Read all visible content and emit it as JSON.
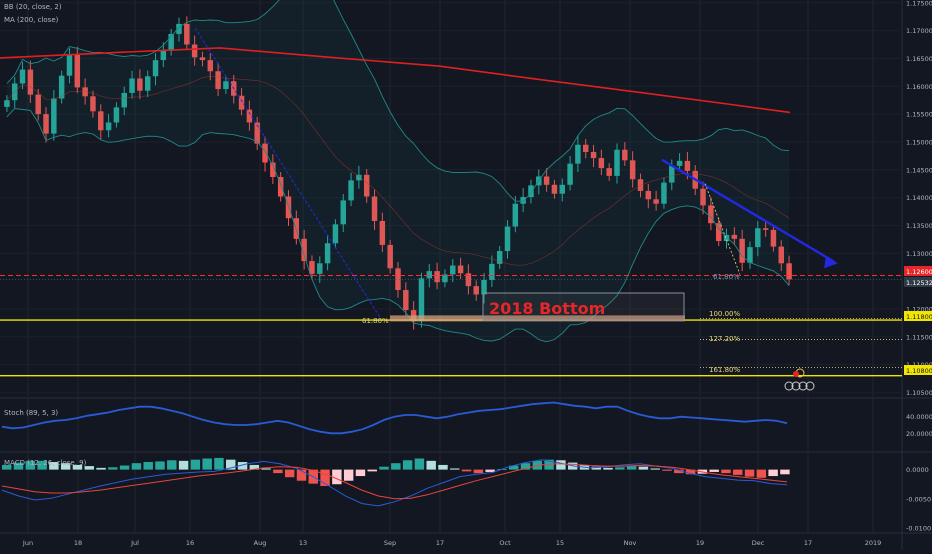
{
  "indicators": {
    "bb_label": "BB (20, close, 2)",
    "ma_label": "MA (200, close)",
    "stoch_label": "Stoch (89, 5, 3)",
    "macd_label": "MACD (12, 26, close, 9)"
  },
  "annotations": {
    "bottom_label": "2018 Bottom",
    "fib_100": "100.00%",
    "fib_127": "127.20%",
    "fib_161": "161.80%",
    "fib_618_left": "61.80%",
    "fib_618_right": "61.80%"
  },
  "price_tags": {
    "resistance": "1.12600",
    "current": "1.12532",
    "support1": "1.11800",
    "support2": "1.10800"
  },
  "colors": {
    "background": "#131722",
    "bull": "#26a69a",
    "bear": "#ef5350",
    "ma200": "#e0201f",
    "bb_band": "#1f8a88",
    "bb_mid": "#c0392b",
    "support_line": "#f2e600",
    "resistance_line": "#ff2b2b",
    "trend_arrow": "#2329e0",
    "stoch_line": "#2a5bd6",
    "macd_line": "#2a5bd6",
    "signal_line": "#e8453c"
  },
  "chart_data": [
    {
      "type": "candlestick",
      "panel": "price",
      "x_ticks": [
        "Jun",
        "18",
        "Jul",
        "16",
        "Aug",
        "13",
        "Sep",
        "17",
        "Oct",
        "15",
        "Nov",
        "19",
        "Dec",
        "17",
        "2019"
      ],
      "y_ticks": [
        "1.17500",
        "1.17000",
        "1.16500",
        "1.16000",
        "1.15500",
        "1.15000",
        "1.14500",
        "1.14000",
        "1.13500",
        "1.13000",
        "1.12000",
        "1.11500",
        "1.11000",
        "1.10500"
      ],
      "ylim": [
        1.104,
        1.1755
      ],
      "close_series": [
        1.1575,
        1.1605,
        1.163,
        1.1585,
        1.155,
        1.1515,
        1.1578,
        1.1619,
        1.1657,
        1.1598,
        1.1582,
        1.1555,
        1.1521,
        1.1535,
        1.1562,
        1.1588,
        1.1614,
        1.1592,
        1.1618,
        1.1647,
        1.1664,
        1.1694,
        1.1712,
        1.1675,
        1.1652,
        1.1647,
        1.1627,
        1.1595,
        1.1609,
        1.1583,
        1.1558,
        1.1535,
        1.1497,
        1.1463,
        1.1437,
        1.1402,
        1.1363,
        1.1326,
        1.1286,
        1.1263,
        1.1282,
        1.1318,
        1.1352,
        1.1395,
        1.1431,
        1.1441,
        1.1402,
        1.1358,
        1.1315,
        1.1273,
        1.1234,
        1.1198,
        1.1178,
        1.1255,
        1.1268,
        1.1248,
        1.1262,
        1.1278,
        1.1264,
        1.1241,
        1.1226,
        1.1252,
        1.1281,
        1.1304,
        1.1348,
        1.1389,
        1.1401,
        1.1422,
        1.1438,
        1.1423,
        1.1407,
        1.1423,
        1.1461,
        1.1495,
        1.1482,
        1.1471,
        1.1453,
        1.1439,
        1.1486,
        1.1467,
        1.1433,
        1.1412,
        1.1397,
        1.1389,
        1.1427,
        1.1457,
        1.1466,
        1.1448,
        1.1416,
        1.1386,
        1.1354,
        1.1322,
        1.1333,
        1.1326,
        1.1283,
        1.1311,
        1.1345,
        1.1342,
        1.1312,
        1.1282,
        1.1253
      ],
      "indicators": [
        "BB (20, close, 2)",
        "MA (200, close)"
      ],
      "horizontal_levels": [
        1.126,
        1.118,
        1.108
      ],
      "fib_levels": {
        "61.80%": 1.118,
        "100.00%": 1.1183,
        "127.20%": 1.1145,
        "161.80%": 1.1095
      }
    },
    {
      "type": "line",
      "panel": "stochastic",
      "name": "Stoch (89, 5, 3)",
      "y_ticks": [
        "40.0000",
        "20.0000"
      ],
      "values": [
        28,
        26,
        27,
        30,
        33,
        35,
        36,
        38,
        41,
        43,
        45,
        48,
        50,
        52,
        52,
        50,
        47,
        44,
        40,
        36,
        33,
        31,
        30,
        30,
        31,
        33,
        35,
        33,
        29,
        25,
        22,
        20,
        20,
        22,
        25,
        30,
        36,
        40,
        42,
        42,
        40,
        38,
        40,
        43,
        45,
        47,
        48,
        49,
        51,
        53,
        55,
        56,
        57,
        55,
        53,
        52,
        50,
        52,
        52,
        47,
        43,
        40,
        38,
        38,
        40,
        39,
        38,
        37,
        36,
        35,
        34,
        35,
        36,
        35,
        32
      ]
    },
    {
      "type": "bar",
      "panel": "macd",
      "name": "MACD (12, 26, close, 9)",
      "y_ticks": [
        "0.0000",
        "-0.0050",
        "-0.0100"
      ],
      "histogram": [
        0.0008,
        0.0012,
        0.0015,
        0.0015,
        0.0013,
        0.0011,
        0.0008,
        0.0006,
        0.0003,
        0.0004,
        0.0007,
        0.0011,
        0.0013,
        0.0014,
        0.0016,
        0.0015,
        0.0017,
        0.0019,
        0.002,
        0.0017,
        0.0013,
        0.0008,
        0.0002,
        -0.0006,
        -0.0013,
        -0.0019,
        -0.0024,
        -0.0028,
        -0.0025,
        -0.0019,
        -0.0011,
        -0.0003,
        0.0005,
        0.0011,
        0.0016,
        0.0019,
        0.0015,
        0.0008,
        0.0002,
        -0.0003,
        -0.0006,
        -0.0004,
        0.0001,
        0.0007,
        0.0011,
        0.0015,
        0.0017,
        0.0016,
        0.0012,
        0.0008,
        0.0005,
        0.0003,
        0.0004,
        0.0006,
        0.0005,
        0.0002,
        -0.0002,
        -0.0006,
        -0.0008,
        -0.0007,
        -0.0004,
        -0.0006,
        -0.0009,
        -0.0012,
        -0.0014,
        -0.0011,
        -0.0008
      ],
      "macd_line": [
        -0.0035,
        -0.0045,
        -0.0052,
        -0.0049,
        -0.0042,
        -0.0035,
        -0.0028,
        -0.0022,
        -0.0016,
        -0.0012,
        -0.0008,
        -0.0006,
        -0.0004,
        -0.0003,
        0.0003,
        0.001,
        0.0014,
        0.001,
        0.0002,
        -0.0012,
        -0.0028,
        -0.0045,
        -0.0058,
        -0.0062,
        -0.0055,
        -0.0045,
        -0.0032,
        -0.0022,
        -0.0012,
        -0.0008,
        -0.0005,
        0.0005,
        0.0012,
        0.0017,
        0.0012,
        0.0006,
        0.0003,
        0.0005,
        0.0008,
        0.001,
        0.0006,
        0.0002,
        -0.0006,
        -0.0012,
        -0.0015,
        -0.0018,
        -0.0019,
        -0.0024,
        -0.0026
      ],
      "signal_line": [
        -0.0028,
        -0.0033,
        -0.0038,
        -0.004,
        -0.004,
        -0.0038,
        -0.0035,
        -0.0031,
        -0.0027,
        -0.0023,
        -0.0019,
        -0.0015,
        -0.0011,
        -0.0008,
        -0.0005,
        -0.0001,
        0.0003,
        0.0005,
        0.0004,
        -0.0001,
        -0.001,
        -0.0022,
        -0.0035,
        -0.0045,
        -0.005,
        -0.0049,
        -0.0043,
        -0.0035,
        -0.0027,
        -0.0019,
        -0.0012,
        -0.0005,
        0.0002,
        0.0008,
        0.001,
        0.0009,
        0.0007,
        0.0006,
        0.0006,
        0.0007,
        0.0006,
        0.0004,
        0.0,
        -0.0005,
        -0.0009,
        -0.0012,
        -0.0015,
        -0.0018,
        -0.0021
      ]
    }
  ]
}
